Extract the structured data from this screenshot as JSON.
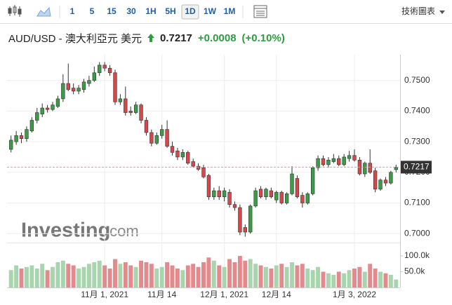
{
  "toolbar": {
    "intervals": [
      "1",
      "5",
      "15",
      "30",
      "1H",
      "5H",
      "1D",
      "1W",
      "1M"
    ],
    "active_index": 6,
    "tech_chart": "技術圖表"
  },
  "header": {
    "symbol": "AUD/USD - 澳大利亞元 美元",
    "price": "0.7217",
    "change": "+0.0008",
    "change_pct": "(+0.10%)"
  },
  "watermark": {
    "brand": "Investing",
    "suffix": ".com"
  },
  "chart_data": {
    "type": "candlestick",
    "categories": [
      null,
      null,
      null,
      null,
      null,
      null,
      null,
      null,
      null,
      null,
      null,
      null,
      null,
      null,
      null,
      null,
      null,
      null,
      "11月 1, 2021",
      null,
      null,
      null,
      null,
      null,
      null,
      null,
      null,
      null,
      null,
      "11月 14",
      null,
      null,
      null,
      null,
      null,
      null,
      null,
      null,
      null,
      null,
      null,
      "12月 1, 2021",
      null,
      null,
      null,
      null,
      null,
      null,
      null,
      null,
      null,
      "12月 14",
      null,
      null,
      null,
      null,
      null,
      null,
      null,
      null,
      null,
      null,
      null,
      null,
      null,
      null,
      "1月 3, 2022",
      null,
      null,
      null,
      null,
      null,
      null,
      null,
      null
    ],
    "open": [
      0.7275,
      0.73,
      0.732,
      0.731,
      0.7335,
      0.737,
      0.739,
      0.741,
      0.7405,
      0.7415,
      0.744,
      0.749,
      0.7475,
      0.7465,
      0.747,
      0.749,
      0.75,
      0.7525,
      0.755,
      0.754,
      0.7525,
      0.743,
      0.744,
      0.74,
      0.7395,
      0.742,
      0.737,
      0.733,
      0.7295,
      0.732,
      0.734,
      0.7285,
      0.727,
      0.725,
      0.7265,
      0.7235,
      0.722,
      0.7215,
      0.719,
      0.712,
      0.714,
      0.712,
      0.7135,
      0.7095,
      0.7085,
      0.702,
      0.7005,
      0.709,
      0.7145,
      0.712,
      0.714,
      0.711,
      0.7135,
      0.71,
      0.713,
      0.718,
      0.7125,
      0.71,
      0.713,
      0.7215,
      0.7245,
      0.7225,
      0.7235,
      0.7245,
      0.7225,
      0.7245,
      0.7255,
      0.724,
      0.7195,
      0.723,
      0.7205,
      0.7145,
      0.7175,
      0.7165,
      0.7209
    ],
    "high": [
      0.732,
      0.7335,
      0.733,
      0.735,
      0.738,
      0.741,
      0.7425,
      0.742,
      0.743,
      0.745,
      0.752,
      0.7555,
      0.749,
      0.7485,
      0.7505,
      0.7515,
      0.7545,
      0.756,
      0.756,
      0.755,
      0.7535,
      0.7455,
      0.748,
      0.7415,
      0.743,
      0.7425,
      0.738,
      0.734,
      0.733,
      0.7355,
      0.737,
      0.73,
      0.728,
      0.7275,
      0.727,
      0.7245,
      0.723,
      0.7225,
      0.7195,
      0.715,
      0.7155,
      0.715,
      0.7145,
      0.7105,
      0.7095,
      0.703,
      0.7095,
      0.715,
      0.7155,
      0.715,
      0.715,
      0.714,
      0.714,
      0.7135,
      0.722,
      0.719,
      0.7135,
      0.7135,
      0.722,
      0.7255,
      0.7255,
      0.725,
      0.726,
      0.7255,
      0.726,
      0.727,
      0.7275,
      0.725,
      0.7235,
      0.7275,
      0.7215,
      0.718,
      0.7185,
      0.7205,
      0.7225
    ],
    "low": [
      0.7265,
      0.729,
      0.7295,
      0.73,
      0.733,
      0.736,
      0.738,
      0.7395,
      0.74,
      0.741,
      0.743,
      0.7465,
      0.7455,
      0.7455,
      0.746,
      0.748,
      0.7495,
      0.7515,
      0.753,
      0.7515,
      0.742,
      0.742,
      0.7385,
      0.7385,
      0.739,
      0.736,
      0.732,
      0.7285,
      0.729,
      0.731,
      0.728,
      0.7255,
      0.724,
      0.724,
      0.7225,
      0.7215,
      0.7205,
      0.718,
      0.711,
      0.711,
      0.711,
      0.7105,
      0.7085,
      0.7075,
      0.6995,
      0.699,
      0.7,
      0.7085,
      0.7115,
      0.711,
      0.7115,
      0.71,
      0.7095,
      0.7095,
      0.7125,
      0.7115,
      0.7085,
      0.7095,
      0.7125,
      0.7205,
      0.722,
      0.7215,
      0.723,
      0.722,
      0.722,
      0.7235,
      0.7235,
      0.719,
      0.7185,
      0.7195,
      0.7135,
      0.714,
      0.7155,
      0.716,
      0.72
    ],
    "close": [
      0.7305,
      0.732,
      0.731,
      0.734,
      0.737,
      0.7395,
      0.741,
      0.7405,
      0.742,
      0.744,
      0.749,
      0.747,
      0.7465,
      0.7475,
      0.7495,
      0.75,
      0.7525,
      0.755,
      0.754,
      0.7525,
      0.743,
      0.744,
      0.7395,
      0.7395,
      0.742,
      0.737,
      0.733,
      0.7295,
      0.732,
      0.734,
      0.7285,
      0.7265,
      0.725,
      0.7265,
      0.723,
      0.722,
      0.721,
      0.7185,
      0.712,
      0.714,
      0.712,
      0.714,
      0.7095,
      0.7085,
      0.7005,
      0.7005,
      0.709,
      0.714,
      0.712,
      0.7145,
      0.712,
      0.7135,
      0.71,
      0.713,
      0.7195,
      0.712,
      0.71,
      0.713,
      0.7215,
      0.7245,
      0.7225,
      0.724,
      0.7245,
      0.7225,
      0.725,
      0.7255,
      0.724,
      0.7195,
      0.723,
      0.72,
      0.7145,
      0.7175,
      0.7165,
      0.72,
      0.7217
    ],
    "volume": [
      55000,
      70000,
      60000,
      65000,
      70000,
      60000,
      75000,
      55000,
      65000,
      80000,
      85000,
      75000,
      70000,
      60000,
      65000,
      75000,
      80000,
      85000,
      70000,
      60000,
      90000,
      75000,
      80000,
      70000,
      65000,
      85000,
      80000,
      75000,
      60000,
      65000,
      80000,
      70000,
      60000,
      55000,
      70000,
      75000,
      65000,
      80000,
      95000,
      85000,
      70000,
      65000,
      90000,
      80000,
      100000,
      85000,
      90000,
      75000,
      70000,
      65000,
      60000,
      70000,
      75000,
      65000,
      80000,
      70000,
      75000,
      60000,
      55000,
      65000,
      50000,
      45000,
      40000,
      50000,
      45000,
      55000,
      60000,
      65000,
      50000,
      75000,
      60000,
      50000,
      45000,
      40000,
      25000
    ],
    "up_color": "#3c9b46",
    "down_color": "#d9464a",
    "up_volume_color": "#a8d5ae",
    "down_volume_color": "#e58a8c",
    "current_price": 0.7217,
    "ylim": [
      0.6973,
      0.7584
    ],
    "yticks": [
      0.7,
      0.71,
      0.72,
      0.73,
      0.74,
      0.75
    ],
    "ytick_decimals": 4,
    "volume_ylim": [
      0,
      120000
    ],
    "volume_ticks": [
      {
        "value": 100000,
        "label": "100.0k"
      },
      {
        "value": 50000,
        "label": "50.0k"
      }
    ],
    "grid": true
  }
}
